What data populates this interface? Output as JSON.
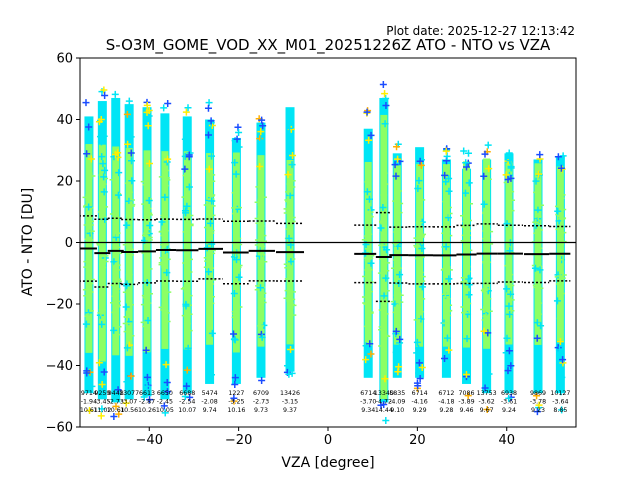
{
  "plot_date": "Plot date: 2025-12-27 12:13:42",
  "chart_data": {
    "type": "scatter",
    "title": "S-O3M_GOME_VOD_XX_M01_20251226Z ATO - NTO vs VZA",
    "xlabel": "VZA [degree]",
    "ylabel": "ATO - NTO [DU]",
    "xlim": [
      -55.5,
      55.5
    ],
    "ylim": [
      -60,
      60
    ],
    "xticks": [
      -40,
      -20,
      0,
      20,
      40
    ],
    "xtick_labels": [
      "−40",
      "−20",
      "0",
      "20",
      "40"
    ],
    "yticks": [
      -60,
      -40,
      -20,
      0,
      20,
      40,
      60
    ],
    "ytick_labels": [
      "−60",
      "−40",
      "−20",
      "0",
      "20",
      "40",
      "60"
    ],
    "zero_line": 0,
    "marker": "+",
    "colors": {
      "blue": "#1a4cff",
      "cyan": "#00e5f5",
      "green": "#8cff64",
      "yellow": "#ffee00",
      "orange": "#ffb000",
      "black": "#000000"
    },
    "groups": [
      {
        "vza": -53.5,
        "count": "9714",
        "mean": "-1.94",
        "std": "10.61",
        "spread_lo": -55,
        "spread_hi": 47
      },
      {
        "vza": -50.5,
        "count": "9259",
        "mean": "-3.45",
        "std": "11.02",
        "spread_lo": -57,
        "spread_hi": 52
      },
      {
        "vza": -47.5,
        "count": "9448",
        "mean": "-2.73",
        "std": "10.61",
        "spread_lo": -58,
        "spread_hi": 53
      },
      {
        "vza": -44.5,
        "count": "13077",
        "mean": "-3.07",
        "std": "10.56",
        "spread_lo": -57,
        "spread_hi": 51
      },
      {
        "vza": -40.5,
        "count": "6613",
        "mean": "-2.87",
        "std": "10.26",
        "spread_lo": -56,
        "spread_hi": 50
      },
      {
        "vza": -36.5,
        "count": "6650",
        "mean": "-2.45",
        "std": "10.05",
        "spread_lo": -57,
        "spread_hi": 48
      },
      {
        "vza": -31.5,
        "count": "6688",
        "mean": "-2.54",
        "std": "10.07",
        "spread_lo": -55,
        "spread_hi": 47
      },
      {
        "vza": -26.5,
        "count": "5474",
        "mean": "-2.08",
        "std": "9.74",
        "spread_lo": -52,
        "spread_hi": 46
      },
      {
        "vza": -20.5,
        "count": "1227",
        "mean": "-3.25",
        "std": "10.16",
        "spread_lo": -52,
        "spread_hi": 40
      },
      {
        "vza": -15,
        "count": "6709",
        "mean": "-2.73",
        "std": "9.73",
        "spread_lo": -50,
        "spread_hi": 45
      },
      {
        "vza": -8.5,
        "count": "13426",
        "mean": "-3.15",
        "std": "9.37",
        "spread_lo": -48,
        "spread_hi": 50
      },
      {
        "vza": 9,
        "count": "6714",
        "mean": "-3.70",
        "std": "9.34",
        "spread_lo": -50,
        "spread_hi": 43
      },
      {
        "vza": 12.5,
        "count": "13340",
        "mean": "-4.72",
        "std": "14.44",
        "spread_lo": -58,
        "spread_hi": 53
      },
      {
        "vza": 15.5,
        "count": "5835",
        "mean": "-4.09",
        "std": "9.10",
        "spread_lo": -50,
        "spread_hi": 35
      },
      {
        "vza": 20.5,
        "count": "6714",
        "mean": "-4.16",
        "std": "9.29",
        "spread_lo": -50,
        "spread_hi": 37
      },
      {
        "vza": 26.5,
        "count": "6712",
        "mean": "-4.18",
        "std": "9.28",
        "spread_lo": -50,
        "spread_hi": 33
      },
      {
        "vza": 31,
        "count": "7086",
        "mean": "-3.89",
        "std": "9.46",
        "spread_lo": -52,
        "spread_hi": 30
      },
      {
        "vza": 35.5,
        "count": "13753",
        "mean": "-3.62",
        "std": "9.67",
        "spread_lo": -55,
        "spread_hi": 33
      },
      {
        "vza": 40.5,
        "count": "6938",
        "mean": "-3.61",
        "std": "9.24",
        "spread_lo": -55,
        "spread_hi": 35
      },
      {
        "vza": 47,
        "count": "9869",
        "mean": "-3.78",
        "std": "9.23",
        "spread_lo": -55,
        "spread_hi": 33
      },
      {
        "vza": 52,
        "count": "10127",
        "mean": "-3.64",
        "std": "8.85",
        "spread_lo": -55,
        "spread_hi": 34
      }
    ]
  }
}
